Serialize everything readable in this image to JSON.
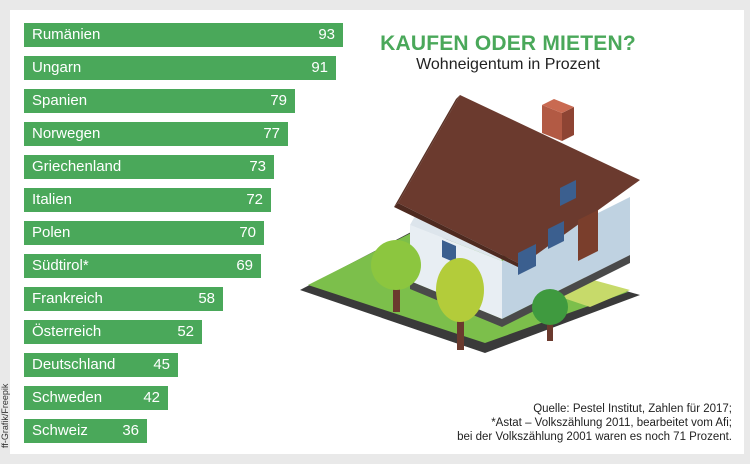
{
  "header": {
    "title": "KAUFEN ODER MIETEN?",
    "subtitle": "Wohneigentum in Prozent"
  },
  "source": {
    "line1": "Quelle: Pestel Institut, Zahlen für 2017;",
    "line2": "*Astat – Volkszählung 2011, bearbeitet vom Afi;",
    "line3": "bei der Volkszählung 2001 waren es noch 71 Prozent."
  },
  "credit": "ff-Grafik/Freepik",
  "colors": {
    "bar": "#4aa85a",
    "accent": "#4aa85a"
  },
  "illustration": {
    "name": "house-illustration"
  },
  "chart_data": {
    "type": "bar",
    "orientation": "horizontal",
    "categories": [
      "Rumänien",
      "Ungarn",
      "Spanien",
      "Norwegen",
      "Griechenland",
      "Italien",
      "Polen",
      "Südtirol*",
      "Frankreich",
      "Österreich",
      "Deutschland",
      "Schweden",
      "Schweiz"
    ],
    "values": [
      93,
      91,
      79,
      77,
      73,
      72,
      70,
      69,
      58,
      52,
      45,
      42,
      36
    ],
    "title": "KAUFEN ODER MIETEN?",
    "subtitle": "Wohneigentum in Prozent",
    "xlim": [
      0,
      100
    ],
    "grid": false,
    "legend": "none"
  }
}
